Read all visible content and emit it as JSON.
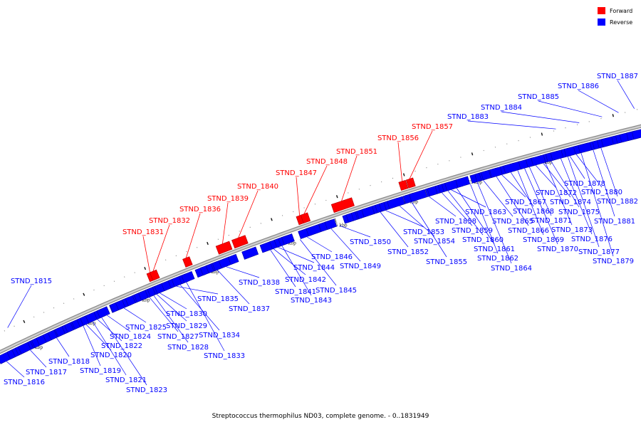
{
  "colors": {
    "forward": "#ff0000",
    "reverse": "#0000ff",
    "axis": "#b8b8b8",
    "text": "#000000"
  },
  "legend": {
    "forward": "Forward",
    "reverse": "Reverse"
  },
  "caption": "Streptococcus thermophilus ND03, complete genome. - 0..1831949",
  "tick_labels": [
    "1710 kbp",
    "1715 kbp",
    "1720 kbp",
    "1725 kbp",
    "1730 kbp",
    "1735 kbp",
    "1740 kbp",
    "1745 kbp",
    "1750 kbp"
  ],
  "forward_genes": [
    {
      "name": "STND_1831",
      "t": 0.265
    },
    {
      "name": "STND_1832",
      "t": 0.27
    },
    {
      "name": "STND_1836",
      "t": 0.323
    },
    {
      "name": "STND_1839",
      "t": 0.381
    },
    {
      "name": "STND_1840",
      "t": 0.406
    },
    {
      "name": "STND_1847",
      "t": 0.501
    },
    {
      "name": "STND_1848",
      "t": 0.508
    },
    {
      "name": "STND_1851",
      "t": 0.565
    },
    {
      "name": "STND_1856",
      "t": 0.656
    },
    {
      "name": "STND_1857",
      "t": 0.667
    }
  ],
  "reverse_genes": [
    {
      "name": "STND_1815",
      "t": 0.033
    },
    {
      "name": "STND_1816",
      "t": 0.009
    },
    {
      "name": "STND_1817",
      "t": 0.05
    },
    {
      "name": "STND_1818",
      "t": 0.095
    },
    {
      "name": "STND_1819",
      "t": 0.14
    },
    {
      "name": "STND_1820",
      "t": 0.145
    },
    {
      "name": "STND_1821",
      "t": 0.156
    },
    {
      "name": "STND_1822",
      "t": 0.164
    },
    {
      "name": "STND_1823",
      "t": 0.171
    },
    {
      "name": "STND_1824",
      "t": 0.18
    },
    {
      "name": "STND_1825",
      "t": 0.208
    },
    {
      "name": "STND_1827",
      "t": 0.25
    },
    {
      "name": "STND_1828",
      "t": 0.257
    },
    {
      "name": "STND_1829",
      "t": 0.262
    },
    {
      "name": "STND_1830",
      "t": 0.267
    },
    {
      "name": "STND_1833",
      "t": 0.31
    },
    {
      "name": "STND_1834",
      "t": 0.3
    },
    {
      "name": "STND_1835",
      "t": 0.294
    },
    {
      "name": "STND_1837",
      "t": 0.36
    },
    {
      "name": "STND_1838",
      "t": 0.374
    },
    {
      "name": "STND_1841",
      "t": 0.444
    },
    {
      "name": "STND_1842",
      "t": 0.449
    },
    {
      "name": "STND_1843",
      "t": 0.462
    },
    {
      "name": "STND_1844",
      "t": 0.456
    },
    {
      "name": "STND_1845",
      "t": 0.49
    },
    {
      "name": "STND_1846",
      "t": 0.501
    },
    {
      "name": "STND_1849",
      "t": 0.538
    },
    {
      "name": "STND_1850",
      "t": 0.551
    },
    {
      "name": "STND_1852",
      "t": 0.613
    },
    {
      "name": "STND_1853",
      "t": 0.621
    },
    {
      "name": "STND_1854",
      "t": 0.642
    },
    {
      "name": "STND_1855",
      "t": 0.66
    },
    {
      "name": "STND_1858",
      "t": 0.686
    },
    {
      "name": "STND_1859",
      "t": 0.705
    },
    {
      "name": "STND_1860",
      "t": 0.714
    },
    {
      "name": "STND_1861",
      "t": 0.727
    },
    {
      "name": "STND_1862",
      "t": 0.747
    },
    {
      "name": "STND_1863",
      "t": 0.719
    },
    {
      "name": "STND_1864",
      "t": 0.757
    },
    {
      "name": "STND_1865",
      "t": 0.766
    },
    {
      "name": "STND_1866",
      "t": 0.785
    },
    {
      "name": "STND_1867",
      "t": 0.793
    },
    {
      "name": "STND_1868",
      "t": 0.806
    },
    {
      "name": "STND_1869",
      "t": 0.816
    },
    {
      "name": "STND_1870",
      "t": 0.826
    },
    {
      "name": "STND_1871",
      "t": 0.833
    },
    {
      "name": "STND_1872",
      "t": 0.842
    },
    {
      "name": "STND_1873",
      "t": 0.856
    },
    {
      "name": "STND_1874",
      "t": 0.853
    },
    {
      "name": "STND_1875",
      "t": 0.864
    },
    {
      "name": "STND_1876",
      "t": 0.878
    },
    {
      "name": "STND_1877",
      "t": 0.888
    },
    {
      "name": "STND_1878",
      "t": 0.891
    },
    {
      "name": "STND_1879",
      "t": 0.907
    },
    {
      "name": "STND_1880",
      "t": 0.9
    },
    {
      "name": "STND_1881",
      "t": 0.924
    },
    {
      "name": "STND_1882",
      "t": 0.935
    },
    {
      "name": "STND_1883",
      "t": 0.882
    },
    {
      "name": "STND_1884",
      "t": 0.915
    },
    {
      "name": "STND_1885",
      "t": 0.947
    },
    {
      "name": "STND_1886",
      "t": 0.97
    },
    {
      "name": "STND_1887",
      "t": 0.992
    }
  ]
}
